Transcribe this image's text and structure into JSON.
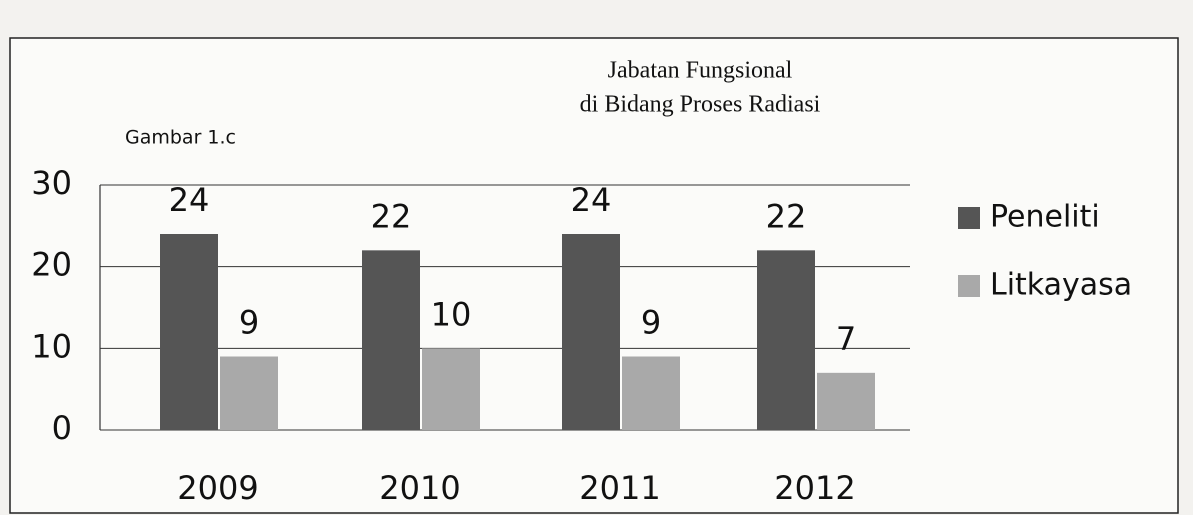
{
  "chart_data": {
    "type": "bar",
    "title_lines": [
      "Jabatan Fungsional",
      "di Bidang Proses Radiasi"
    ],
    "annotation": "Gambar 1.c",
    "categories": [
      "2009",
      "2010",
      "2011",
      "2012"
    ],
    "series": [
      {
        "name": "Peneliti",
        "color": "#555555",
        "values": [
          24,
          22,
          24,
          22
        ]
      },
      {
        "name": "Litkayasa",
        "color": "#a9a9a9",
        "values": [
          9,
          10,
          9,
          7
        ]
      }
    ],
    "ylim": [
      0,
      30
    ],
    "yticks": [
      0,
      10,
      20,
      30
    ],
    "grid": true,
    "legend": "right"
  }
}
